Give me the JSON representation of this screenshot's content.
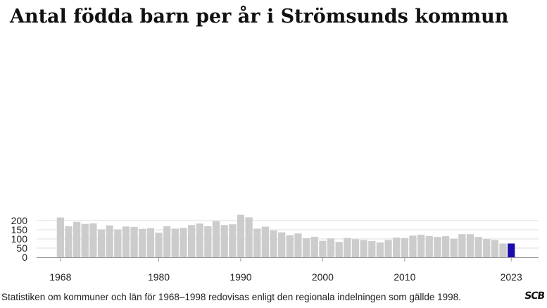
{
  "title": "Antal födda barn per år i Strömsunds kommun",
  "footnote": "Statistiken om kommuner och län för 1968–1998 redovisas enligt den regionala indelningen som gällde 1998.",
  "logo_text": "SCB",
  "colors": {
    "bar": "#cccccc",
    "highlight": "#1a0dab",
    "grid": "#dddddd",
    "axis": "#999999"
  },
  "chart_data": {
    "type": "bar",
    "title": "Antal födda barn per år i Strömsunds kommun",
    "xlabel": "",
    "ylabel": "",
    "x": [
      1968,
      1969,
      1970,
      1971,
      1972,
      1973,
      1974,
      1975,
      1976,
      1977,
      1978,
      1979,
      1980,
      1981,
      1982,
      1983,
      1984,
      1985,
      1986,
      1987,
      1988,
      1989,
      1990,
      1991,
      1992,
      1993,
      1994,
      1995,
      1996,
      1997,
      1998,
      1999,
      2000,
      2001,
      2002,
      2003,
      2004,
      2005,
      2006,
      2007,
      2008,
      2009,
      2010,
      2011,
      2012,
      2013,
      2014,
      2015,
      2016,
      2017,
      2018,
      2019,
      2020,
      2021,
      2022,
      2023
    ],
    "values": [
      217,
      169,
      193,
      182,
      185,
      152,
      174,
      152,
      168,
      166,
      155,
      159,
      134,
      169,
      156,
      160,
      176,
      184,
      169,
      197,
      176,
      180,
      232,
      218,
      156,
      167,
      146,
      136,
      120,
      130,
      104,
      112,
      90,
      103,
      84,
      105,
      98,
      94,
      89,
      81,
      94,
      107,
      105,
      118,
      123,
      116,
      111,
      115,
      101,
      126,
      126,
      111,
      100,
      94,
      75,
      75
    ],
    "highlight": [
      2023
    ],
    "x_tick_labels": [
      "1968",
      "1980",
      "1990",
      "2000",
      "2010",
      "2023"
    ],
    "y_ticks": [
      0,
      50,
      100,
      150,
      200
    ],
    "ylim": [
      0,
      240
    ],
    "grid": true,
    "legend": "none"
  }
}
